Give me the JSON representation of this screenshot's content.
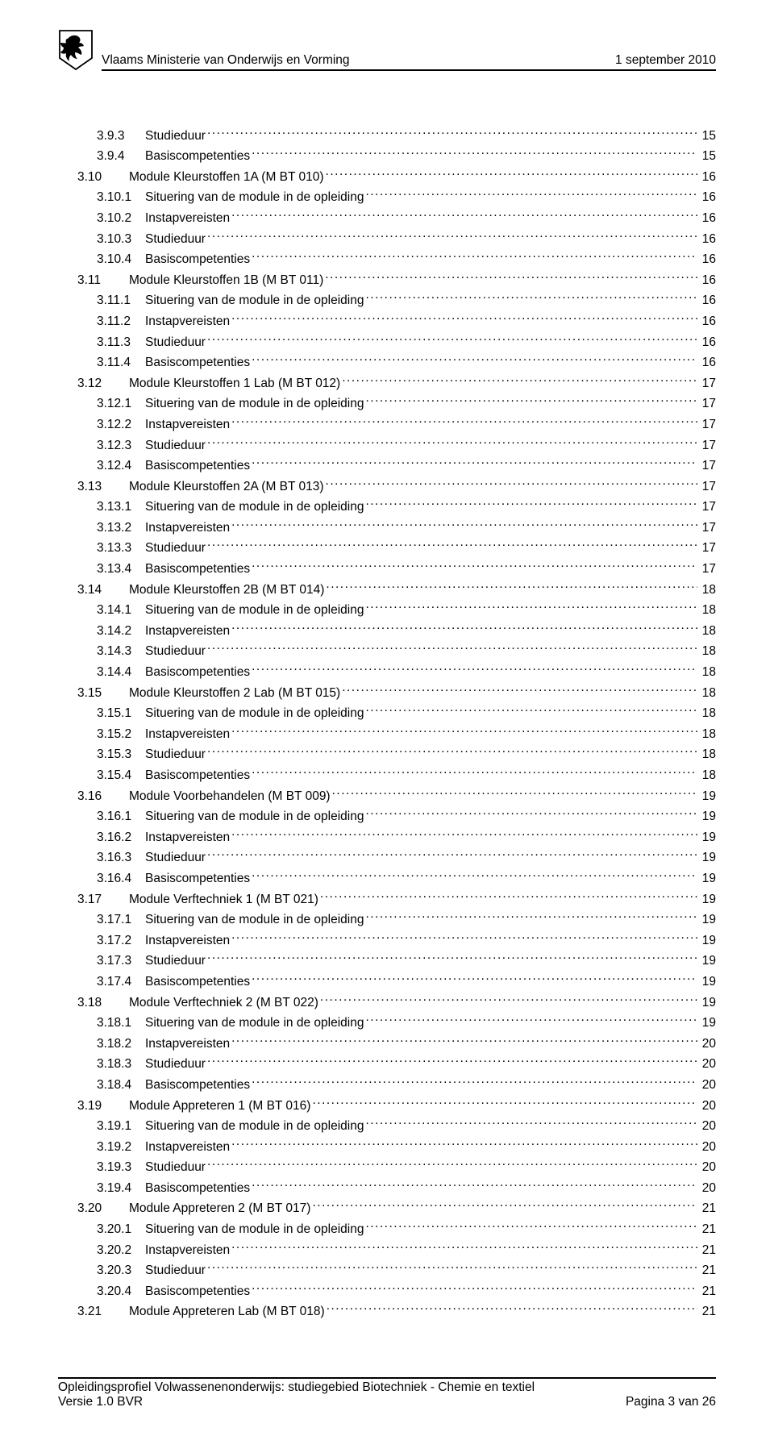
{
  "header": {
    "ministry": "Vlaams Ministerie van Onderwijs en Vorming",
    "date": "1 september 2010"
  },
  "toc": [
    {
      "num": "3.9.3",
      "title": "Studieduur",
      "page": "15",
      "indent": 2
    },
    {
      "num": "3.9.4",
      "title": "Basiscompetenties",
      "page": "15",
      "indent": 2
    },
    {
      "num": "3.10",
      "title": "Module Kleurstoffen 1A (M BT 010)",
      "page": "16",
      "indent": 1
    },
    {
      "num": "3.10.1",
      "title": "Situering van de module in de opleiding",
      "page": "16",
      "indent": 2
    },
    {
      "num": "3.10.2",
      "title": "Instapvereisten",
      "page": "16",
      "indent": 2
    },
    {
      "num": "3.10.3",
      "title": "Studieduur",
      "page": "16",
      "indent": 2
    },
    {
      "num": "3.10.4",
      "title": "Basiscompetenties",
      "page": "16",
      "indent": 2
    },
    {
      "num": "3.11",
      "title": "Module Kleurstoffen 1B (M BT 011)",
      "page": "16",
      "indent": 1
    },
    {
      "num": "3.11.1",
      "title": "Situering van de module in de opleiding",
      "page": "16",
      "indent": 2
    },
    {
      "num": "3.11.2",
      "title": "Instapvereisten",
      "page": "16",
      "indent": 2
    },
    {
      "num": "3.11.3",
      "title": "Studieduur",
      "page": "16",
      "indent": 2
    },
    {
      "num": "3.11.4",
      "title": "Basiscompetenties",
      "page": "16",
      "indent": 2
    },
    {
      "num": "3.12",
      "title": "Module Kleurstoffen 1 Lab (M BT 012)",
      "page": "17",
      "indent": 1
    },
    {
      "num": "3.12.1",
      "title": "Situering van de module in de opleiding",
      "page": "17",
      "indent": 2
    },
    {
      "num": "3.12.2",
      "title": "Instapvereisten",
      "page": "17",
      "indent": 2
    },
    {
      "num": "3.12.3",
      "title": "Studieduur",
      "page": "17",
      "indent": 2
    },
    {
      "num": "3.12.4",
      "title": "Basiscompetenties",
      "page": "17",
      "indent": 2
    },
    {
      "num": "3.13",
      "title": "Module Kleurstoffen 2A (M BT 013)",
      "page": "17",
      "indent": 1
    },
    {
      "num": "3.13.1",
      "title": "Situering van de module in de opleiding",
      "page": "17",
      "indent": 2
    },
    {
      "num": "3.13.2",
      "title": "Instapvereisten",
      "page": "17",
      "indent": 2
    },
    {
      "num": "3.13.3",
      "title": "Studieduur",
      "page": "17",
      "indent": 2
    },
    {
      "num": "3.13.4",
      "title": "Basiscompetenties",
      "page": "17",
      "indent": 2
    },
    {
      "num": "3.14",
      "title": "Module Kleurstoffen 2B (M BT 014)",
      "page": "18",
      "indent": 1
    },
    {
      "num": "3.14.1",
      "title": "Situering van de module in de opleiding",
      "page": "18",
      "indent": 2
    },
    {
      "num": "3.14.2",
      "title": "Instapvereisten",
      "page": "18",
      "indent": 2
    },
    {
      "num": "3.14.3",
      "title": "Studieduur",
      "page": "18",
      "indent": 2
    },
    {
      "num": "3.14.4",
      "title": "Basiscompetenties",
      "page": "18",
      "indent": 2
    },
    {
      "num": "3.15",
      "title": "Module Kleurstoffen 2 Lab (M BT 015)",
      "page": "18",
      "indent": 1
    },
    {
      "num": "3.15.1",
      "title": "Situering van de module in de opleiding",
      "page": "18",
      "indent": 2
    },
    {
      "num": "3.15.2",
      "title": "Instapvereisten",
      "page": "18",
      "indent": 2
    },
    {
      "num": "3.15.3",
      "title": "Studieduur",
      "page": "18",
      "indent": 2
    },
    {
      "num": "3.15.4",
      "title": "Basiscompetenties",
      "page": "18",
      "indent": 2
    },
    {
      "num": "3.16",
      "title": "Module Voorbehandelen (M BT 009)",
      "page": "19",
      "indent": 1
    },
    {
      "num": "3.16.1",
      "title": "Situering van de module in de opleiding",
      "page": "19",
      "indent": 2
    },
    {
      "num": "3.16.2",
      "title": "Instapvereisten",
      "page": "19",
      "indent": 2
    },
    {
      "num": "3.16.3",
      "title": "Studieduur",
      "page": "19",
      "indent": 2
    },
    {
      "num": "3.16.4",
      "title": "Basiscompetenties",
      "page": "19",
      "indent": 2
    },
    {
      "num": "3.17",
      "title": "Module Verftechniek 1 (M BT 021)",
      "page": "19",
      "indent": 1
    },
    {
      "num": "3.17.1",
      "title": "Situering van de module in de opleiding",
      "page": "19",
      "indent": 2
    },
    {
      "num": "3.17.2",
      "title": "Instapvereisten",
      "page": "19",
      "indent": 2
    },
    {
      "num": "3.17.3",
      "title": "Studieduur",
      "page": "19",
      "indent": 2
    },
    {
      "num": "3.17.4",
      "title": "Basiscompetenties",
      "page": "19",
      "indent": 2
    },
    {
      "num": "3.18",
      "title": "Module Verftechniek 2 (M BT 022)",
      "page": "19",
      "indent": 1
    },
    {
      "num": "3.18.1",
      "title": "Situering van de module in de opleiding",
      "page": "19",
      "indent": 2
    },
    {
      "num": "3.18.2",
      "title": "Instapvereisten",
      "page": "20",
      "indent": 2
    },
    {
      "num": "3.18.3",
      "title": "Studieduur",
      "page": "20",
      "indent": 2
    },
    {
      "num": "3.18.4",
      "title": "Basiscompetenties",
      "page": "20",
      "indent": 2
    },
    {
      "num": "3.19",
      "title": "Module Appreteren 1 (M BT 016)",
      "page": "20",
      "indent": 1
    },
    {
      "num": "3.19.1",
      "title": "Situering van de module in de opleiding",
      "page": "20",
      "indent": 2
    },
    {
      "num": "3.19.2",
      "title": "Instapvereisten",
      "page": "20",
      "indent": 2
    },
    {
      "num": "3.19.3",
      "title": "Studieduur",
      "page": "20",
      "indent": 2
    },
    {
      "num": "3.19.4",
      "title": "Basiscompetenties",
      "page": "20",
      "indent": 2
    },
    {
      "num": "3.20",
      "title": "Module Appreteren 2 (M BT 017)",
      "page": "21",
      "indent": 1
    },
    {
      "num": "3.20.1",
      "title": "Situering van de module in de opleiding",
      "page": "21",
      "indent": 2
    },
    {
      "num": "3.20.2",
      "title": "Instapvereisten",
      "page": "21",
      "indent": 2
    },
    {
      "num": "3.20.3",
      "title": "Studieduur",
      "page": "21",
      "indent": 2
    },
    {
      "num": "3.20.4",
      "title": "Basiscompetenties",
      "page": "21",
      "indent": 2
    },
    {
      "num": "3.21",
      "title": "Module Appreteren Lab (M BT 018)",
      "page": "21",
      "indent": 1
    }
  ],
  "footer": {
    "line1": "Opleidingsprofiel Volwassenenonderwijs: studiegebied Biotechniek - Chemie en textiel",
    "version": "Versie 1.0 BVR",
    "page": "Pagina 3 van 26"
  }
}
